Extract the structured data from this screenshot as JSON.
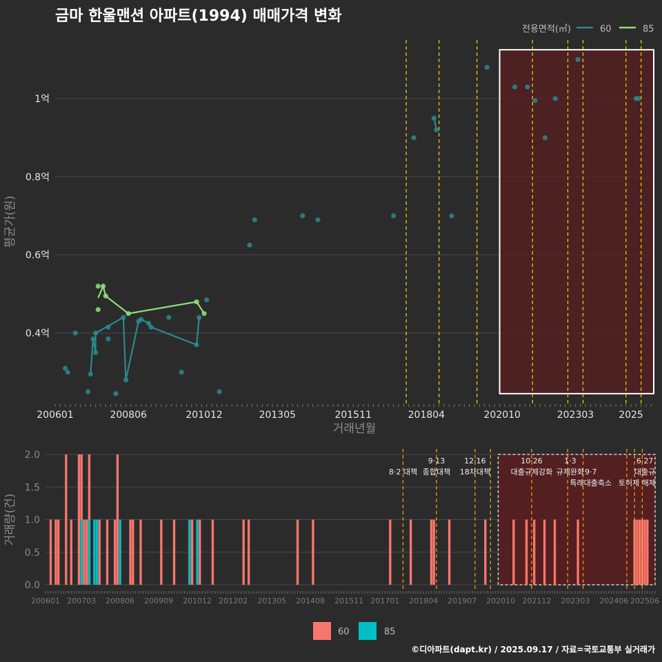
{
  "title": "금마 한울맨션 아파트(1994) 매매가격 변화",
  "caption": "©디아파트(dapt.kr) / 2025.09.17 / 자료=국토교통부 실거래가",
  "colors": {
    "background": "#2b2b2c",
    "grid": "#4a4a4a",
    "line60": "#2a8a8d",
    "line85": "#8fe07a",
    "bar60": "#f8766d",
    "bar85": "#00bfc4",
    "vline": "#ffd400",
    "vline_bottom": "#ffa500",
    "highlight_fill": "#5a1d1f",
    "highlight_border": "#ffffff"
  },
  "chart_data": [
    {
      "type": "scatter",
      "panel": "price",
      "title": "금마 한울맨션 아파트(1994) 매매가격 변화",
      "xlabel": "거래년월",
      "ylabel": "평균가(원)",
      "x_ticks": [
        "200601",
        "200806",
        "201012",
        "201305",
        "201511",
        "201804",
        "202010",
        "202303",
        "2025"
      ],
      "y_ticks": [
        "0.4억",
        "0.6억",
        "0.8억",
        "1억"
      ],
      "ylim": [
        0.22,
        1.15
      ],
      "legend_title": "전용면적(㎡)",
      "legend_position": "top-right",
      "grid": true,
      "series": [
        {
          "name": "60",
          "points": [
            [
              "2006-05",
              0.31
            ],
            [
              "2006-06",
              0.3
            ],
            [
              "2006-09",
              0.4
            ],
            [
              "2007-02",
              0.25
            ],
            [
              "2007-03",
              0.295
            ],
            [
              "2007-04",
              0.385
            ],
            [
              "2007-05",
              0.35
            ],
            [
              "2007-05",
              0.4
            ],
            [
              "2007-10",
              0.415
            ],
            [
              "2007-10",
              0.385
            ],
            [
              "2008-01",
              0.245
            ],
            [
              "2008-04",
              0.44
            ],
            [
              "2008-05",
              0.28
            ],
            [
              "2008-10",
              0.43
            ],
            [
              "2008-11",
              0.435
            ],
            [
              "2009-02",
              0.425
            ],
            [
              "2009-03",
              0.415
            ],
            [
              "2009-10",
              0.44
            ],
            [
              "2010-03",
              0.3
            ],
            [
              "2010-09",
              0.37
            ],
            [
              "2010-10",
              0.44
            ],
            [
              "2011-01",
              0.485
            ],
            [
              "2011-06",
              0.25
            ],
            [
              "2012-06",
              0.625
            ],
            [
              "2012-08",
              0.69
            ],
            [
              "2014-03",
              0.7
            ],
            [
              "2014-09",
              0.69
            ],
            [
              "2017-03",
              0.7
            ],
            [
              "2017-11",
              0.9
            ],
            [
              "2018-07",
              0.95
            ],
            [
              "2018-08",
              0.92
            ],
            [
              "2019-02",
              0.7
            ],
            [
              "2020-04",
              1.08
            ],
            [
              "2021-03",
              1.03
            ],
            [
              "2021-08",
              1.03
            ],
            [
              "2021-11",
              0.995
            ],
            [
              "2022-03",
              0.9
            ],
            [
              "2022-07",
              1.0
            ],
            [
              "2023-04",
              1.1
            ],
            [
              "2025-03",
              1.0
            ],
            [
              "2025-04",
              1.0
            ]
          ]
        },
        {
          "name": "85",
          "points": [
            [
              "2007-06",
              0.52
            ],
            [
              "2007-06",
              0.46
            ],
            [
              "2007-08",
              0.52
            ],
            [
              "2007-09",
              0.495
            ],
            [
              "2008-06",
              0.45
            ],
            [
              "2010-09",
              0.48
            ],
            [
              "2010-12",
              0.45
            ]
          ]
        }
      ],
      "lines": {
        "60": [
          [
            "2007-03",
            0.295
          ],
          [
            "2007-04",
            0.385
          ],
          [
            "2007-05",
            0.35
          ],
          [
            "2007-05",
            0.4
          ],
          [
            "2008-04",
            0.44
          ],
          [
            "2008-05",
            0.28
          ],
          [
            "2008-10",
            0.43
          ],
          [
            "2008-11",
            0.435
          ],
          [
            "2009-02",
            0.425
          ],
          [
            "2009-03",
            0.415
          ],
          [
            "2010-09",
            0.37
          ],
          [
            "2010-10",
            0.44
          ],
          [
            "2018-07",
            0.95
          ],
          [
            "2018-08",
            0.92
          ],
          [
            "2025-03",
            1.0
          ],
          [
            "2025-04",
            1.0
          ]
        ],
        "85": [
          [
            "2007-06",
            0.49
          ],
          [
            "2007-08",
            0.52
          ],
          [
            "2007-09",
            0.495
          ],
          [
            "2008-06",
            0.45
          ],
          [
            "2010-09",
            0.48
          ],
          [
            "2010-12",
            0.45
          ]
        ]
      },
      "vlines": [
        "2017-08",
        "2018-09",
        "2019-12",
        "2021-10",
        "2022-12",
        "2023-06",
        "2024-11",
        "2025-05"
      ],
      "highlight": [
        "2020-09",
        "2025-10"
      ]
    },
    {
      "type": "bar",
      "panel": "volume",
      "xlabel": "",
      "ylabel": "거래량(건)",
      "x_ticks": [
        "200601",
        "200703",
        "200806",
        "200909",
        "201012",
        "201202",
        "201305",
        "201408",
        "201511",
        "201701",
        "201804",
        "201907",
        "202010",
        "202112",
        "202303",
        "202406",
        "202506"
      ],
      "y_ticks": [
        "0.0",
        "0.5",
        "1.0",
        "1.5",
        "2.0"
      ],
      "ylim": [
        0,
        2.0
      ],
      "legend_position": "bottom",
      "series": [
        {
          "name": "60",
          "points": [
            [
              "2006-03",
              1
            ],
            [
              "2006-05",
              1
            ],
            [
              "2006-06",
              1
            ],
            [
              "2006-09",
              2
            ],
            [
              "2006-11",
              1
            ],
            [
              "2007-02",
              2
            ],
            [
              "2007-03",
              2
            ],
            [
              "2007-04",
              1
            ],
            [
              "2007-05",
              1
            ],
            [
              "2007-06",
              2
            ],
            [
              "2007-10",
              1
            ],
            [
              "2008-01",
              1
            ],
            [
              "2008-04",
              1
            ],
            [
              "2008-05",
              2
            ],
            [
              "2008-10",
              1
            ],
            [
              "2008-11",
              1
            ],
            [
              "2009-02",
              1
            ],
            [
              "2009-10",
              1
            ],
            [
              "2010-03",
              1
            ],
            [
              "2010-09",
              1
            ],
            [
              "2010-10",
              1
            ],
            [
              "2011-01",
              1
            ],
            [
              "2011-06",
              1
            ],
            [
              "2012-06",
              1
            ],
            [
              "2012-08",
              1
            ],
            [
              "2014-03",
              1
            ],
            [
              "2014-09",
              1
            ],
            [
              "2017-03",
              1
            ],
            [
              "2017-11",
              1
            ],
            [
              "2018-07",
              1
            ],
            [
              "2018-08",
              1
            ],
            [
              "2019-02",
              1
            ],
            [
              "2020-04",
              1
            ],
            [
              "2021-03",
              1
            ],
            [
              "2021-08",
              1
            ],
            [
              "2021-11",
              1
            ],
            [
              "2022-03",
              1
            ],
            [
              "2022-07",
              1
            ],
            [
              "2023-04",
              1
            ],
            [
              "2025-02",
              1
            ],
            [
              "2025-03",
              1
            ],
            [
              "2025-04",
              1
            ],
            [
              "2025-05",
              1
            ],
            [
              "2025-06",
              1
            ],
            [
              "2025-07",
              1
            ]
          ]
        },
        {
          "name": "85",
          "points": [
            [
              "2007-03",
              1
            ],
            [
              "2007-06",
              1
            ],
            [
              "2007-08",
              1
            ],
            [
              "2007-09",
              1
            ],
            [
              "2008-06",
              1
            ],
            [
              "2010-09",
              1
            ],
            [
              "2010-12",
              1
            ]
          ]
        }
      ],
      "vlines": [
        "2017-08",
        "2018-09",
        "2019-12",
        "2020-06",
        "2021-10",
        "2022-12",
        "2023-06",
        "2024-11",
        "2025-02",
        "2025-05"
      ],
      "highlight": [
        "2020-09",
        "2025-10"
      ],
      "annotations": [
        {
          "date": "2017-08",
          "row": 1,
          "text": "8·2 대책"
        },
        {
          "date": "2018-09",
          "row": 0,
          "text": "9·13"
        },
        {
          "date": "2018-09",
          "row": 1,
          "text": "종합대책"
        },
        {
          "date": "2019-12",
          "row": 0,
          "text": "12·16"
        },
        {
          "date": "2019-12",
          "row": 1,
          "text": "18차대책"
        },
        {
          "date": "2021-10",
          "row": 0,
          "text": "10·26"
        },
        {
          "date": "2021-10",
          "row": 1,
          "text": "대출규제강화"
        },
        {
          "date": "2023-01",
          "row": 0,
          "text": "1·3"
        },
        {
          "date": "2023-01",
          "row": 1,
          "text": "규제완화"
        },
        {
          "date": "2023-09",
          "row": 1,
          "text": "9·7"
        },
        {
          "date": "2023-09",
          "row": 2,
          "text": "특례대출축소"
        },
        {
          "date": "2025-06",
          "row": 0,
          "text": "6·27"
        },
        {
          "date": "2025-06",
          "row": 1,
          "text": "대출규"
        },
        {
          "date": "2025-03",
          "row": 2,
          "text": "토허제 해제"
        }
      ]
    }
  ]
}
